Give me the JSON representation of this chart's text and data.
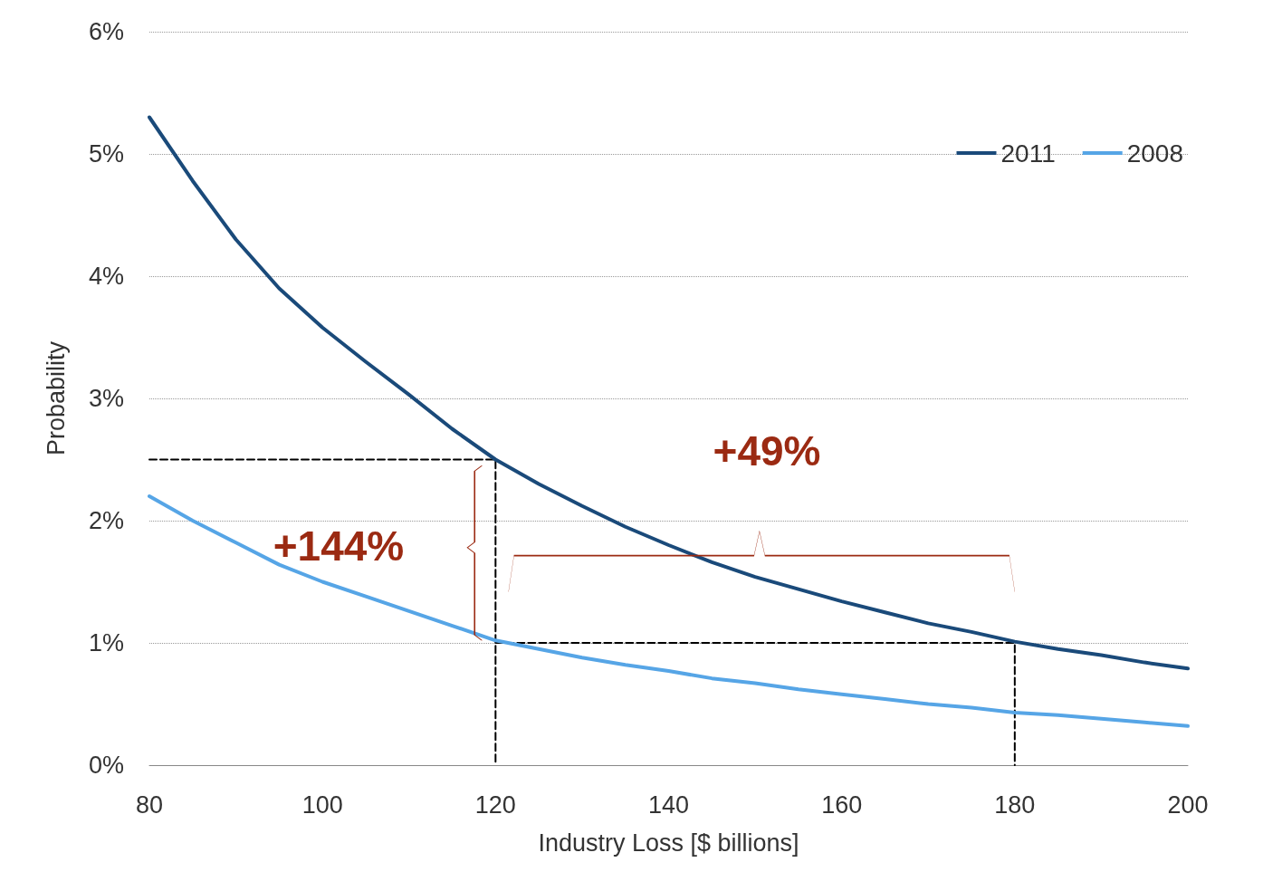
{
  "chart_data": {
    "type": "line",
    "xlabel": "Industry Loss [$ billions]",
    "ylabel": "Probability",
    "x": [
      80,
      85,
      90,
      95,
      100,
      105,
      110,
      115,
      120,
      125,
      130,
      135,
      140,
      145,
      150,
      155,
      160,
      165,
      170,
      175,
      180,
      185,
      190,
      195,
      200
    ],
    "series": [
      {
        "name": "2011",
        "color": "#1a4a7a",
        "values": [
          5.3,
          4.78,
          4.3,
          3.9,
          3.58,
          3.3,
          3.03,
          2.75,
          2.5,
          2.3,
          2.12,
          1.95,
          1.8,
          1.66,
          1.54,
          1.44,
          1.34,
          1.25,
          1.16,
          1.09,
          1.01,
          0.95,
          0.9,
          0.84,
          0.79
        ]
      },
      {
        "name": "2008",
        "color": "#56a5e6",
        "values": [
          2.2,
          2.0,
          1.82,
          1.64,
          1.5,
          1.38,
          1.26,
          1.14,
          1.02,
          0.95,
          0.88,
          0.82,
          0.77,
          0.71,
          0.67,
          0.62,
          0.58,
          0.54,
          0.5,
          0.47,
          0.43,
          0.41,
          0.38,
          0.35,
          0.32
        ]
      },
      {
        "color": "#000000",
        "line_style": "dashed",
        "x": [
          80,
          120,
          120
        ],
        "values": [
          2.5,
          2.5,
          0
        ]
      },
      {
        "color": "#000000",
        "line_style": "dashed",
        "x": [
          120,
          180,
          180
        ],
        "values": [
          1,
          1,
          0
        ]
      }
    ],
    "xlim": [
      80,
      200
    ],
    "xticks": [
      80,
      100,
      120,
      140,
      160,
      180,
      200
    ],
    "ylim": [
      0,
      6
    ],
    "yticks": [
      {
        "value": 0,
        "label": "0%"
      },
      {
        "value": 1,
        "label": "1%"
      },
      {
        "value": 2,
        "label": "2%"
      },
      {
        "value": 3,
        "label": "3%"
      },
      {
        "value": 4,
        "label": "4%"
      },
      {
        "value": 5,
        "label": "5%"
      },
      {
        "value": 6,
        "label": "6%"
      }
    ],
    "annotations": [
      "+144%",
      "+49%"
    ],
    "grid": "y",
    "legend": "top right",
    "marker": "none",
    "line_style": "solid"
  }
}
